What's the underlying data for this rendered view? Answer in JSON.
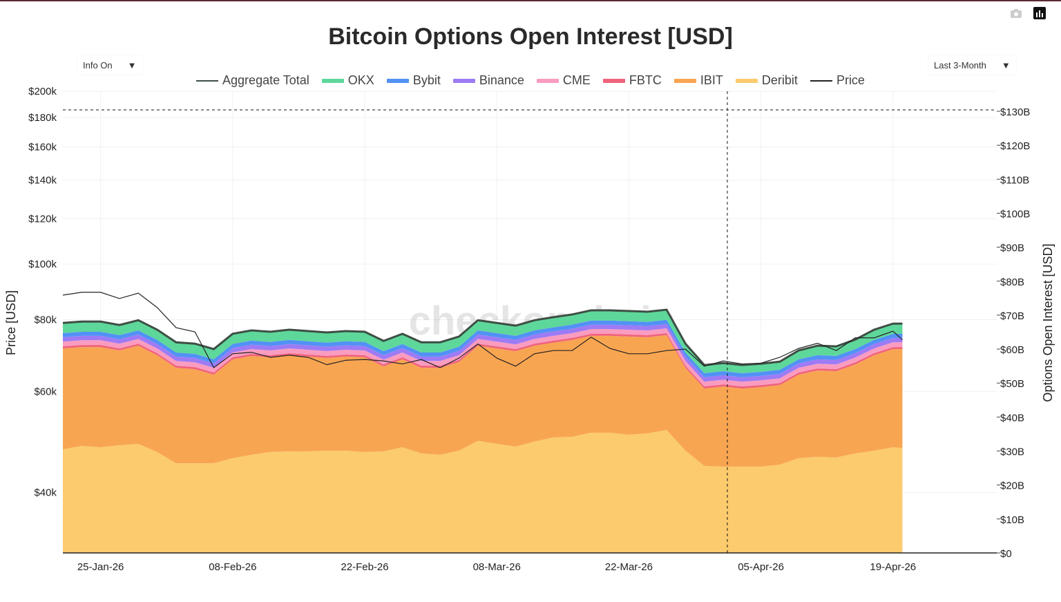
{
  "title": "Bitcoin Options Open Interest [USD]",
  "controls": {
    "info_label": "Info On",
    "range_label": "Last 3-Month",
    "dropdown_arrow": "▼"
  },
  "toolbar": {
    "camera": "camera-icon",
    "chart": "bar-chart-icon"
  },
  "watermark": "checkonchain",
  "chart_data": {
    "type": "area",
    "title": "Bitcoin Options Open Interest [USD]",
    "ylabel_left": "Price [USD]",
    "ylabel_right": "Options Open Interest [USD]",
    "left_axis": {
      "scale": "log",
      "range": [
        31400,
        200000
      ],
      "ticks": [
        40000,
        60000,
        80000,
        100000,
        120000,
        140000,
        160000,
        180000,
        200000
      ],
      "tick_labels": [
        "$40k",
        "$60k",
        "$80k",
        "$100k",
        "$120k",
        "$140k",
        "$160k",
        "$180k",
        "$200k"
      ]
    },
    "right_axis": {
      "scale": "linear",
      "range": [
        0,
        135.9
      ],
      "unit": "B USD",
      "ticks": [
        0,
        10,
        20,
        30,
        40,
        50,
        60,
        70,
        80,
        90,
        100,
        110,
        120,
        130
      ],
      "tick_labels": [
        "$0",
        "$10B",
        "$20B",
        "$30B",
        "$40B",
        "$50B",
        "$60B",
        "$70B",
        "$80B",
        "$90B",
        "$100B",
        "$110B",
        "$120B",
        "$130B"
      ]
    },
    "x_axis": {
      "range": [
        "2026-01-21",
        "2026-04-30"
      ],
      "ticks": [
        "2026-01-25",
        "2026-02-08",
        "2026-02-22",
        "2026-03-08",
        "2026-03-22",
        "2026-04-05",
        "2026-04-19"
      ],
      "tick_labels": [
        "25-Jan-26",
        "08-Feb-26",
        "22-Feb-26",
        "08-Mar-26",
        "22-Mar-26",
        "05-Apr-26",
        "19-Apr-26"
      ]
    },
    "grid": true,
    "legend_position": "top-center",
    "crosshair": {
      "date": "2026-04-01",
      "value_B": 130
    },
    "x": [
      "2026-01-21",
      "2026-01-23",
      "2026-01-25",
      "2026-01-27",
      "2026-01-29",
      "2026-01-31",
      "2026-02-02",
      "2026-02-04",
      "2026-02-06",
      "2026-02-08",
      "2026-02-10",
      "2026-02-12",
      "2026-02-14",
      "2026-02-16",
      "2026-02-18",
      "2026-02-20",
      "2026-02-22",
      "2026-02-24",
      "2026-02-26",
      "2026-02-28",
      "2026-03-02",
      "2026-03-04",
      "2026-03-06",
      "2026-03-08",
      "2026-03-10",
      "2026-03-12",
      "2026-03-14",
      "2026-03-16",
      "2026-03-18",
      "2026-03-20",
      "2026-03-22",
      "2026-03-24",
      "2026-03-26",
      "2026-03-28",
      "2026-03-30",
      "2026-04-01",
      "2026-04-03",
      "2026-04-05",
      "2026-04-07",
      "2026-04-09",
      "2026-04-11",
      "2026-04-13",
      "2026-04-15",
      "2026-04-17",
      "2026-04-19",
      "2026-04-20"
    ],
    "series": [
      {
        "name": "Deribit",
        "color": "#FBCB6E",
        "values": [
          30.5,
          31.5,
          31.1,
          31.7,
          32.1,
          29.7,
          26.4,
          26.4,
          26.4,
          27.9,
          28.9,
          29.7,
          29.9,
          29.9,
          30.1,
          30.1,
          29.7,
          29.9,
          31.1,
          29.3,
          28.9,
          30.1,
          33.0,
          32.1,
          31.3,
          32.8,
          34.0,
          34.2,
          35.4,
          35.4,
          34.8,
          35.2,
          36.2,
          30.1,
          25.6,
          25.4,
          25.4,
          25.4,
          26.0,
          27.9,
          28.3,
          28.1,
          29.3,
          30.1,
          31.1,
          30.9
        ]
      },
      {
        "name": "IBIT",
        "color": "#F8A552",
        "values": [
          29.7,
          29.1,
          29.5,
          27.9,
          28.9,
          28.5,
          28.1,
          27.7,
          26.1,
          29.1,
          29.1,
          27.9,
          28.3,
          27.9,
          27.3,
          27.7,
          27.9,
          25.0,
          25.9,
          25.2,
          25.6,
          26.1,
          28.0,
          28.1,
          28.1,
          28.2,
          27.9,
          28.5,
          28.5,
          28.5,
          28.9,
          28.3,
          27.9,
          24.4,
          22.8,
          23.6,
          23.0,
          23.4,
          23.4,
          24.6,
          25.4,
          25.4,
          26.2,
          28.1,
          28.9,
          29.1
        ]
      },
      {
        "name": "FBTC",
        "color": "#F0637C",
        "values": [
          0.6,
          0.6,
          0.6,
          0.6,
          0.6,
          0.6,
          0.6,
          0.6,
          0.6,
          0.6,
          0.6,
          0.6,
          0.6,
          0.6,
          0.6,
          0.6,
          0.6,
          0.6,
          0.6,
          0.6,
          0.6,
          0.6,
          0.6,
          0.6,
          0.6,
          0.6,
          0.6,
          0.6,
          0.6,
          0.6,
          0.6,
          0.6,
          0.6,
          0.6,
          0.6,
          0.6,
          0.6,
          0.6,
          0.6,
          0.6,
          0.6,
          0.6,
          0.6,
          0.6,
          0.6,
          0.6
        ]
      },
      {
        "name": "CME",
        "color": "#FA9CC0",
        "values": [
          1.4,
          1.4,
          1.4,
          1.4,
          1.4,
          1.4,
          1.4,
          1.4,
          1.4,
          1.4,
          1.4,
          1.4,
          1.4,
          1.4,
          1.4,
          1.4,
          1.4,
          1.4,
          1.4,
          1.4,
          1.4,
          1.4,
          1.4,
          1.4,
          1.4,
          1.4,
          1.4,
          1.4,
          1.4,
          1.4,
          1.4,
          1.4,
          1.4,
          1.4,
          1.4,
          1.4,
          1.4,
          1.4,
          1.4,
          1.4,
          1.4,
          1.4,
          1.4,
          1.4,
          1.4,
          1.4
        ]
      },
      {
        "name": "Binance",
        "color": "#9D7BF5",
        "values": [
          1.3,
          1.3,
          1.3,
          1.3,
          1.3,
          1.3,
          1.3,
          1.3,
          1.3,
          1.3,
          1.3,
          1.3,
          1.3,
          1.3,
          1.3,
          1.3,
          1.3,
          1.3,
          1.3,
          1.3,
          1.3,
          1.3,
          1.3,
          1.3,
          1.3,
          1.3,
          1.3,
          1.3,
          1.3,
          1.3,
          1.3,
          1.3,
          1.3,
          1.3,
          1.3,
          1.3,
          1.3,
          1.3,
          1.3,
          1.3,
          1.3,
          1.3,
          1.3,
          1.3,
          1.3,
          1.3
        ]
      },
      {
        "name": "Bybit",
        "color": "#5291F5",
        "values": [
          1.2,
          1.2,
          1.2,
          1.2,
          1.2,
          1.2,
          1.2,
          1.2,
          1.2,
          1.2,
          1.2,
          1.2,
          1.2,
          1.2,
          1.2,
          1.2,
          1.2,
          1.2,
          1.2,
          1.2,
          1.2,
          1.2,
          1.2,
          1.2,
          1.2,
          1.2,
          1.2,
          1.2,
          1.2,
          1.2,
          1.2,
          1.2,
          1.2,
          1.2,
          1.2,
          1.2,
          1.2,
          1.2,
          1.2,
          1.2,
          1.2,
          1.2,
          1.2,
          1.2,
          1.2,
          1.2
        ]
      },
      {
        "name": "OKX",
        "color": "#5ED79B",
        "values": [
          3.0,
          3.0,
          3.0,
          3.0,
          3.0,
          3.0,
          3.0,
          3.0,
          3.0,
          3.0,
          3.0,
          3.0,
          3.0,
          3.0,
          3.0,
          3.0,
          3.0,
          3.0,
          3.0,
          3.0,
          3.0,
          3.0,
          3.0,
          3.0,
          3.0,
          3.0,
          3.0,
          3.0,
          3.0,
          3.0,
          3.0,
          3.0,
          3.0,
          2.6,
          2.4,
          2.4,
          2.4,
          2.4,
          2.4,
          2.6,
          2.8,
          2.8,
          2.8,
          3.0,
          3.0,
          3.0
        ]
      }
    ],
    "aggregate": {
      "name": "Aggregate Total",
      "color": "#3E4E44"
    },
    "price": {
      "name": "Price",
      "color": "#222222",
      "unit": "USD",
      "values": [
        88300,
        89300,
        89300,
        87100,
        89000,
        84000,
        77500,
        76200,
        66000,
        69800,
        70200,
        68800,
        69400,
        68800,
        66800,
        68000,
        68200,
        67800,
        67000,
        68200,
        66000,
        68600,
        72600,
        68600,
        66400,
        69800,
        70700,
        70700,
        74600,
        71300,
        69800,
        69800,
        70700,
        71100,
        66400,
        67800,
        67000,
        67200,
        68800,
        71300,
        72800,
        70700,
        74400,
        74400,
        76400,
        73800
      ]
    },
    "legend": [
      "Aggregate Total",
      "OKX",
      "Bybit",
      "Binance",
      "CME",
      "FBTC",
      "IBIT",
      "Deribit",
      "Price"
    ]
  }
}
